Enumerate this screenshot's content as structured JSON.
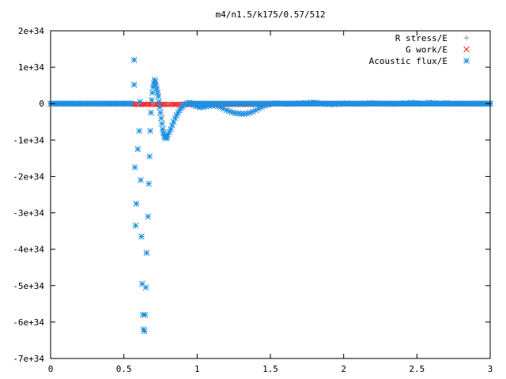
{
  "chart_data": {
    "type": "scatter",
    "title": "m4/n1.5/k175/0.57/512",
    "xlabel": "",
    "ylabel": "",
    "xlim": [
      0,
      3
    ],
    "ylim": [
      -7e+34,
      2e+34
    ],
    "x_ticks": [
      0,
      0.5,
      1,
      1.5,
      2,
      2.5,
      3
    ],
    "x_tick_labels": [
      "0",
      "0.5",
      "1",
      "1.5",
      "2",
      "2.5",
      "3"
    ],
    "y_ticks": [
      2e+34,
      1e+34,
      0,
      -1e+34,
      -2e+34,
      -3e+34,
      -4e+34,
      -5e+34,
      -6e+34,
      -7e+34
    ],
    "y_tick_labels": [
      "2e+34",
      "1e+34",
      "0",
      "-1e+34",
      "-2e+34",
      "-3e+34",
      "-4e+34",
      "-5e+34",
      "-6e+34",
      "-7e+34"
    ],
    "grid": false,
    "legend_position": "top-right",
    "series": [
      {
        "name": "R stress/E",
        "marker": "plus",
        "color": "#999999",
        "points": [
          [
            0.0,
            0
          ],
          [
            0.1,
            0
          ],
          [
            0.2,
            0
          ],
          [
            0.3,
            0
          ],
          [
            0.4,
            0
          ],
          [
            0.5,
            0
          ],
          [
            0.6,
            0
          ],
          [
            0.7,
            0
          ],
          [
            0.8,
            0
          ],
          [
            0.9,
            0
          ],
          [
            1.0,
            0
          ],
          [
            1.2,
            0
          ],
          [
            1.4,
            0
          ],
          [
            1.6,
            0
          ],
          [
            1.8,
            0
          ],
          [
            2.0,
            0
          ],
          [
            2.2,
            0
          ],
          [
            2.4,
            0
          ],
          [
            2.6,
            0
          ],
          [
            2.8,
            0
          ],
          [
            3.0,
            0
          ]
        ]
      },
      {
        "name": "G work/E",
        "marker": "cross",
        "color": "#ff2020",
        "points": [
          [
            0.0,
            0
          ],
          [
            0.1,
            0
          ],
          [
            0.2,
            0
          ],
          [
            0.3,
            0
          ],
          [
            0.4,
            0
          ],
          [
            0.5,
            0
          ],
          [
            0.56,
            -4e+31
          ],
          [
            0.6,
            -8e+31
          ],
          [
            0.64,
            -1.2e+32
          ],
          [
            0.68,
            -1.6e+32
          ],
          [
            0.72,
            -1.8e+32
          ],
          [
            0.76,
            -2e+32
          ],
          [
            0.8,
            -2e+32
          ],
          [
            0.85,
            -1.8e+32
          ],
          [
            0.9,
            -1.6e+32
          ],
          [
            0.95,
            -1.5e+32
          ],
          [
            1.0,
            -1.4e+32
          ],
          [
            1.05,
            -1.3e+32
          ],
          [
            1.1,
            -1.2e+32
          ],
          [
            1.15,
            -1.2e+32
          ],
          [
            1.2,
            -1.2e+32
          ],
          [
            1.25,
            -1.2e+32
          ],
          [
            1.3,
            -1.2e+32
          ],
          [
            1.35,
            -1e+32
          ],
          [
            1.4,
            -8e+31
          ],
          [
            1.5,
            -5e+31
          ],
          [
            1.6,
            0
          ],
          [
            1.8,
            0
          ],
          [
            2.0,
            0
          ],
          [
            2.2,
            0
          ],
          [
            2.4,
            0
          ],
          [
            2.6,
            0
          ],
          [
            2.8,
            0
          ],
          [
            3.0,
            0
          ]
        ]
      },
      {
        "name": "Acoustic flux/E",
        "marker": "star",
        "color": "#1f8fe0",
        "points": [
          [
            0.0,
            0
          ],
          [
            0.05,
            0
          ],
          [
            0.1,
            0
          ],
          [
            0.15,
            0
          ],
          [
            0.2,
            0
          ],
          [
            0.25,
            0
          ],
          [
            0.3,
            0
          ],
          [
            0.35,
            0
          ],
          [
            0.4,
            0
          ],
          [
            0.45,
            0
          ],
          [
            0.5,
            0
          ],
          [
            0.55,
            0
          ],
          [
            0.57,
            1.2e+34
          ],
          [
            0.57,
            5.2e+33
          ],
          [
            0.575,
            -1.75e+34
          ],
          [
            0.585,
            -2.75e+34
          ],
          [
            0.58,
            -3.35e+34
          ],
          [
            0.595,
            -1.25e+34
          ],
          [
            0.605,
            -7.5e+33
          ],
          [
            0.61,
            5e+32
          ],
          [
            0.615,
            -2.1e+34
          ],
          [
            0.62,
            -3.65e+34
          ],
          [
            0.625,
            -4.95e+34
          ],
          [
            0.63,
            -5.8e+34
          ],
          [
            0.635,
            -6.2e+34
          ],
          [
            0.64,
            -6.25e+34
          ],
          [
            0.645,
            -5.8e+34
          ],
          [
            0.65,
            -5.05e+34
          ],
          [
            0.655,
            -4.1e+34
          ],
          [
            0.665,
            -3.1e+34
          ],
          [
            0.67,
            -2.2e+34
          ],
          [
            0.675,
            -1.45e+34
          ],
          [
            0.68,
            -7.5e+33
          ],
          [
            0.685,
            -2.5e+33
          ],
          [
            0.69,
            1e+33
          ],
          [
            0.695,
            3e+33
          ],
          [
            0.7,
            4.5e+33
          ],
          [
            0.705,
            5.5e+33
          ],
          [
            0.71,
            6.5e+33
          ],
          [
            0.715,
            6e+33
          ],
          [
            0.72,
            5e+33
          ],
          [
            0.725,
            4e+33
          ],
          [
            0.73,
            3e+33
          ],
          [
            0.735,
            2e+33
          ],
          [
            0.74,
            5e+32
          ],
          [
            0.745,
            -1e+33
          ],
          [
            0.75,
            -2.5e+33
          ],
          [
            0.755,
            -4e+33
          ],
          [
            0.76,
            -5.5e+33
          ],
          [
            0.765,
            -7e+33
          ],
          [
            0.77,
            -8e+33
          ],
          [
            0.775,
            -8.8e+33
          ],
          [
            0.78,
            -9.2e+33
          ],
          [
            0.785,
            -9.5e+33
          ],
          [
            0.79,
            -9.3e+33
          ],
          [
            0.795,
            -9e+33
          ],
          [
            0.8,
            -8.5e+33
          ],
          [
            0.81,
            -7.8e+33
          ],
          [
            0.82,
            -7e+33
          ],
          [
            0.83,
            -6e+33
          ],
          [
            0.84,
            -5e+33
          ],
          [
            0.85,
            -4e+33
          ],
          [
            0.86,
            -3.2e+33
          ],
          [
            0.87,
            -2.5e+33
          ],
          [
            0.88,
            -1.8e+33
          ],
          [
            0.89,
            -1.2e+33
          ],
          [
            0.9,
            -8e+32
          ],
          [
            0.91,
            -4e+32
          ],
          [
            0.92,
            -2e+32
          ],
          [
            0.93,
            0
          ],
          [
            0.94,
            2e+32
          ],
          [
            0.95,
            2e+32
          ],
          [
            0.96,
            0
          ],
          [
            0.97,
            -2e+32
          ],
          [
            0.98,
            -4e+32
          ],
          [
            0.99,
            -6e+32
          ],
          [
            1.0,
            -8e+32
          ],
          [
            1.02,
            -1e+33
          ],
          [
            1.04,
            -1e+33
          ],
          [
            1.06,
            -8e+32
          ],
          [
            1.08,
            -6e+32
          ],
          [
            1.1,
            -5e+32
          ],
          [
            1.12,
            -5e+32
          ],
          [
            1.14,
            -7e+32
          ],
          [
            1.16,
            -1e+33
          ],
          [
            1.18,
            -1.4e+33
          ],
          [
            1.2,
            -1.8e+33
          ],
          [
            1.22,
            -2.1e+33
          ],
          [
            1.24,
            -2.4e+33
          ],
          [
            1.26,
            -2.6e+33
          ],
          [
            1.28,
            -2.7e+33
          ],
          [
            1.3,
            -2.8e+33
          ],
          [
            1.32,
            -2.8e+33
          ],
          [
            1.34,
            -2.7e+33
          ],
          [
            1.36,
            -2.5e+33
          ],
          [
            1.38,
            -2.2e+33
          ],
          [
            1.4,
            -1.8e+33
          ],
          [
            1.42,
            -1.4e+33
          ],
          [
            1.44,
            -1e+33
          ],
          [
            1.46,
            -6e+32
          ],
          [
            1.48,
            -3e+32
          ],
          [
            1.5,
            0
          ],
          [
            1.54,
            1e+32
          ],
          [
            1.58,
            0
          ],
          [
            1.62,
            -1e+32
          ],
          [
            1.66,
            0
          ],
          [
            1.7,
            1e+32
          ],
          [
            1.74,
            2e+32
          ],
          [
            1.78,
            3e+32
          ],
          [
            1.8,
            3e+32
          ],
          [
            1.82,
            2e+32
          ],
          [
            1.86,
            0
          ],
          [
            1.9,
            -2e+32
          ],
          [
            1.94,
            -2e+32
          ],
          [
            1.98,
            0
          ],
          [
            2.02,
            1e+32
          ],
          [
            2.06,
            0
          ],
          [
            2.1,
            -1e+32
          ],
          [
            2.14,
            0
          ],
          [
            2.18,
            2e+32
          ],
          [
            2.22,
            1e+32
          ],
          [
            2.26,
            0
          ],
          [
            2.3,
            0
          ],
          [
            2.34,
            -1e+32
          ],
          [
            2.38,
            0
          ],
          [
            2.42,
            1e+32
          ],
          [
            2.46,
            3e+32
          ],
          [
            2.5,
            2e+32
          ],
          [
            2.54,
            0
          ],
          [
            2.58,
            3e+32
          ],
          [
            2.62,
            2e+32
          ],
          [
            2.66,
            0
          ],
          [
            2.7,
            2e+32
          ],
          [
            2.74,
            0
          ],
          [
            2.78,
            0
          ],
          [
            2.82,
            0
          ],
          [
            2.86,
            0
          ],
          [
            2.9,
            0
          ],
          [
            2.94,
            0
          ],
          [
            2.98,
            0
          ],
          [
            3.0,
            0
          ]
        ]
      }
    ]
  }
}
